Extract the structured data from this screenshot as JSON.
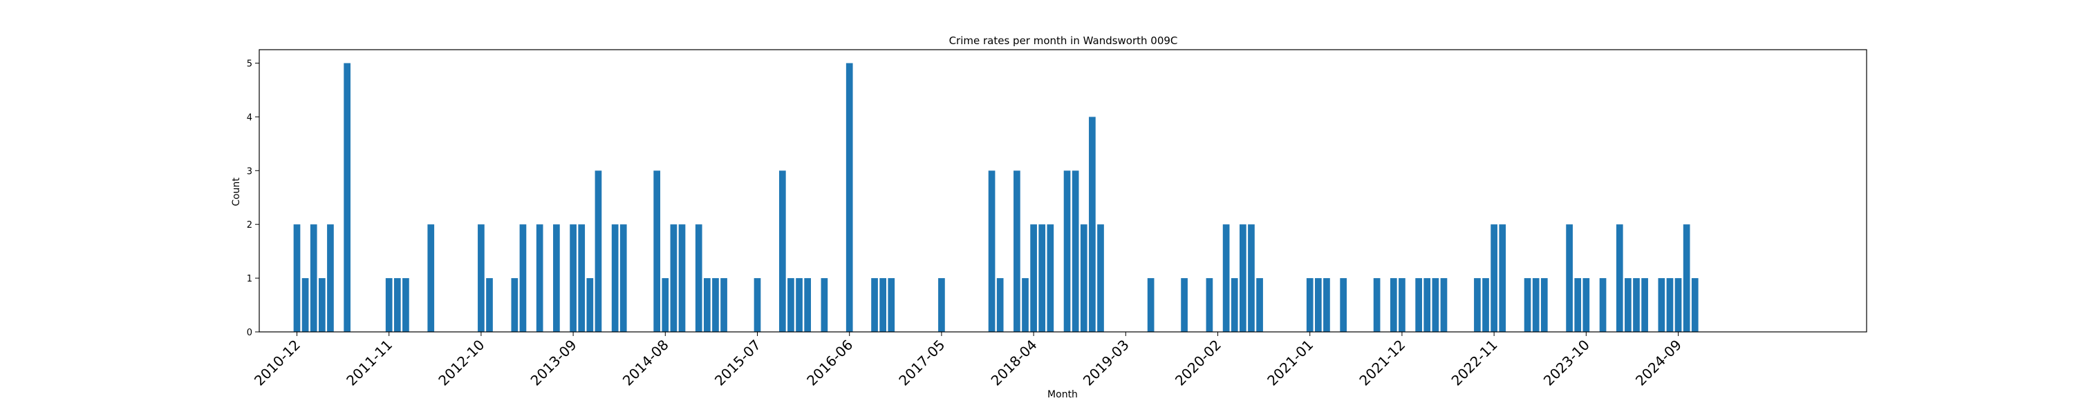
{
  "chart_data": {
    "type": "bar",
    "title": "Crime rates per month in Wandsworth 009C",
    "xlabel": "Month",
    "ylabel": "Count",
    "ylim": [
      0,
      5.25
    ],
    "yticks": [
      0,
      1,
      2,
      3,
      4,
      5
    ],
    "bar_color": "#1f77b4",
    "grid": false,
    "xtick_labels": [
      "2010-12",
      "2011-11",
      "2012-10",
      "2013-09",
      "2014-08",
      "2015-07",
      "2016-06",
      "2017-05",
      "2018-04",
      "2019-03",
      "2020-02",
      "2021-01",
      "2021-12",
      "2022-11",
      "2023-10",
      "2024-09"
    ],
    "x": [
      "2010-12",
      "2011-01",
      "2011-02",
      "2011-03",
      "2011-04",
      "2011-06",
      "2011-11",
      "2011-12",
      "2012-01",
      "2012-04",
      "2012-10",
      "2012-11",
      "2013-02",
      "2013-03",
      "2013-05",
      "2013-07",
      "2013-09",
      "2013-10",
      "2013-11",
      "2013-12",
      "2014-02",
      "2014-03",
      "2014-07",
      "2014-08",
      "2014-09",
      "2014-10",
      "2014-12",
      "2015-01",
      "2015-02",
      "2015-03",
      "2015-07",
      "2015-10",
      "2015-11",
      "2015-12",
      "2016-01",
      "2016-03",
      "2016-06",
      "2016-09",
      "2016-10",
      "2016-11",
      "2017-05",
      "2017-11",
      "2017-12",
      "2018-02",
      "2018-03",
      "2018-04",
      "2018-05",
      "2018-06",
      "2018-08",
      "2018-09",
      "2018-10",
      "2018-11",
      "2018-12",
      "2019-06",
      "2019-10",
      "2020-01",
      "2020-03",
      "2020-04",
      "2020-05",
      "2020-06",
      "2020-07",
      "2021-01",
      "2021-02",
      "2021-03",
      "2021-05",
      "2021-09",
      "2021-11",
      "2021-12",
      "2022-02",
      "2022-03",
      "2022-04",
      "2022-05",
      "2022-09",
      "2022-10",
      "2022-11",
      "2022-12",
      "2023-03",
      "2023-04",
      "2023-05",
      "2023-08",
      "2023-09",
      "2023-10",
      "2023-12",
      "2024-02",
      "2024-03",
      "2024-04",
      "2024-05",
      "2024-07",
      "2024-08",
      "2024-09",
      "2024-10",
      "2024-11"
    ],
    "values": [
      2,
      1,
      2,
      1,
      2,
      5,
      1,
      1,
      1,
      2,
      2,
      1,
      1,
      2,
      2,
      2,
      2,
      2,
      1,
      3,
      2,
      2,
      3,
      1,
      2,
      2,
      2,
      1,
      1,
      1,
      1,
      3,
      1,
      1,
      1,
      1,
      5,
      1,
      1,
      1,
      1,
      3,
      1,
      3,
      1,
      2,
      2,
      2,
      3,
      3,
      2,
      4,
      2,
      1,
      1,
      1,
      2,
      1,
      2,
      2,
      1,
      1,
      1,
      1,
      1,
      1,
      1,
      1,
      1,
      1,
      1,
      1,
      1,
      1,
      2,
      2,
      1,
      1,
      1,
      2,
      1,
      1,
      1,
      2,
      1,
      1,
      1,
      1,
      1,
      1,
      2,
      1
    ]
  }
}
